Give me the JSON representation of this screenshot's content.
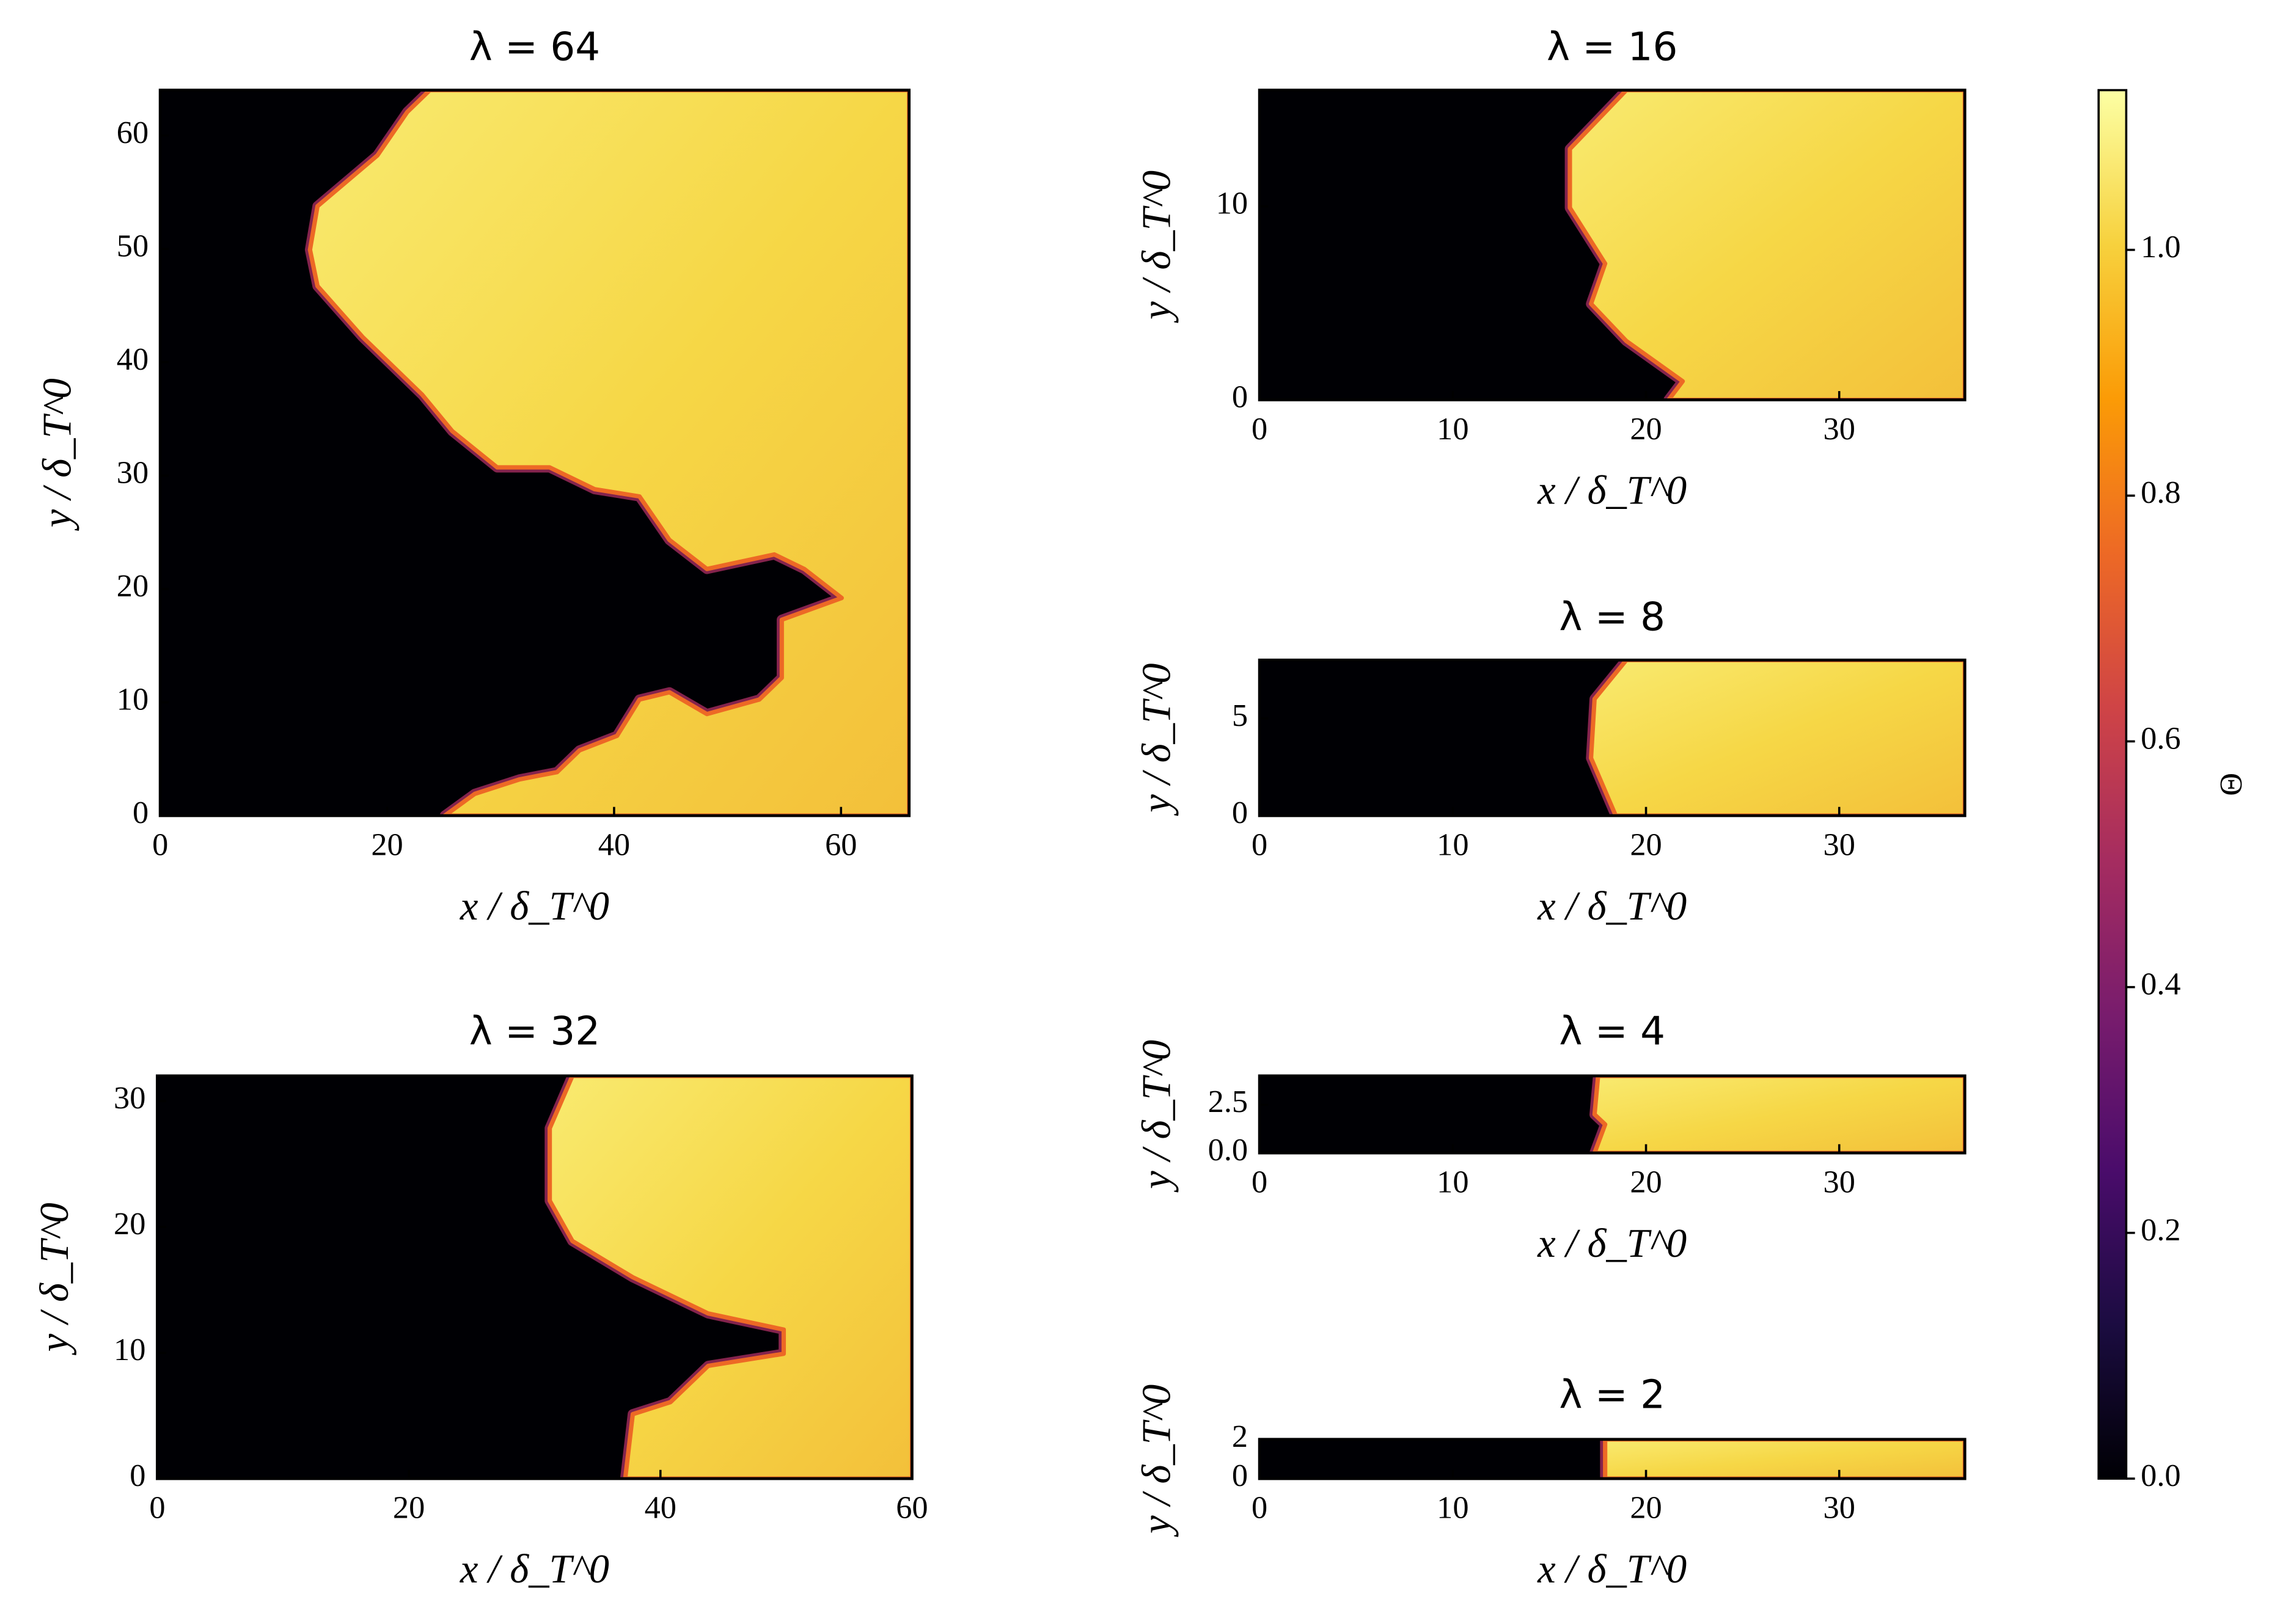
{
  "chart_data": [
    {
      "type": "heatmap",
      "title": "λ = 64",
      "xlabel": "x / δ_T^0",
      "ylabel": "y / δ_T^0",
      "xlim": [
        0,
        66
      ],
      "ylim": [
        0,
        64
      ],
      "xticks": [
        0,
        20,
        40,
        60
      ],
      "yticks": [
        0,
        10,
        20,
        30,
        40,
        50,
        60
      ]
    },
    {
      "type": "heatmap",
      "title": "λ = 32",
      "xlabel": "x / δ_T^0",
      "ylabel": "y / δ_T^0",
      "xlim": [
        0,
        60
      ],
      "ylim": [
        0,
        32
      ],
      "xticks": [
        0,
        20,
        40,
        60
      ],
      "yticks": [
        0,
        10,
        20,
        30
      ]
    },
    {
      "type": "heatmap",
      "title": "λ = 16",
      "xlabel": "x / δ_T^0",
      "ylabel": "y / δ_T^0",
      "xlim": [
        0,
        36.5
      ],
      "ylim": [
        0,
        16
      ],
      "xticks": [
        0,
        10,
        20,
        30
      ],
      "yticks": [
        0,
        10
      ]
    },
    {
      "type": "heatmap",
      "title": "λ = 8",
      "xlabel": "x / δ_T^0",
      "ylabel": "y / δ_T^0",
      "xlim": [
        0,
        36.5
      ],
      "ylim": [
        0,
        8
      ],
      "xticks": [
        0,
        10,
        20,
        30
      ],
      "yticks": [
        0,
        5
      ]
    },
    {
      "type": "heatmap",
      "title": "λ = 4",
      "xlabel": "x / δ_T^0",
      "ylabel": "y / δ_T^0",
      "xlim": [
        0,
        36.5
      ],
      "ylim": [
        0,
        4
      ],
      "xticks": [
        0,
        10,
        20,
        30
      ],
      "yticks": [
        {
          "value": 0,
          "label": "0.0"
        },
        {
          "value": 2.5,
          "label": "2.5"
        }
      ]
    },
    {
      "type": "heatmap",
      "title": "λ = 2",
      "xlabel": "x / δ_T^0",
      "ylabel": "y / δ_T^0",
      "xlim": [
        0,
        36.5
      ],
      "ylim": [
        0,
        2
      ],
      "xticks": [
        0,
        10,
        20,
        30
      ],
      "yticks": [
        0,
        2
      ]
    }
  ],
  "colorbar": {
    "label": "Θ",
    "lim": [
      0,
      1.13
    ],
    "ticks": [
      {
        "value": 0,
        "label": "0.0"
      },
      {
        "value": 0.2,
        "label": "0.2"
      },
      {
        "value": 0.4,
        "label": "0.4"
      },
      {
        "value": 0.6,
        "label": "0.6"
      },
      {
        "value": 0.8,
        "label": "0.8"
      },
      {
        "value": 1,
        "label": "1.0"
      }
    ],
    "colormap": [
      "#000004",
      "#1b0c41",
      "#4a0c6b",
      "#781c6d",
      "#a52c60",
      "#cf4446",
      "#ed6925",
      "#fb9b06",
      "#f7d13d",
      "#fcffa4"
    ]
  }
}
